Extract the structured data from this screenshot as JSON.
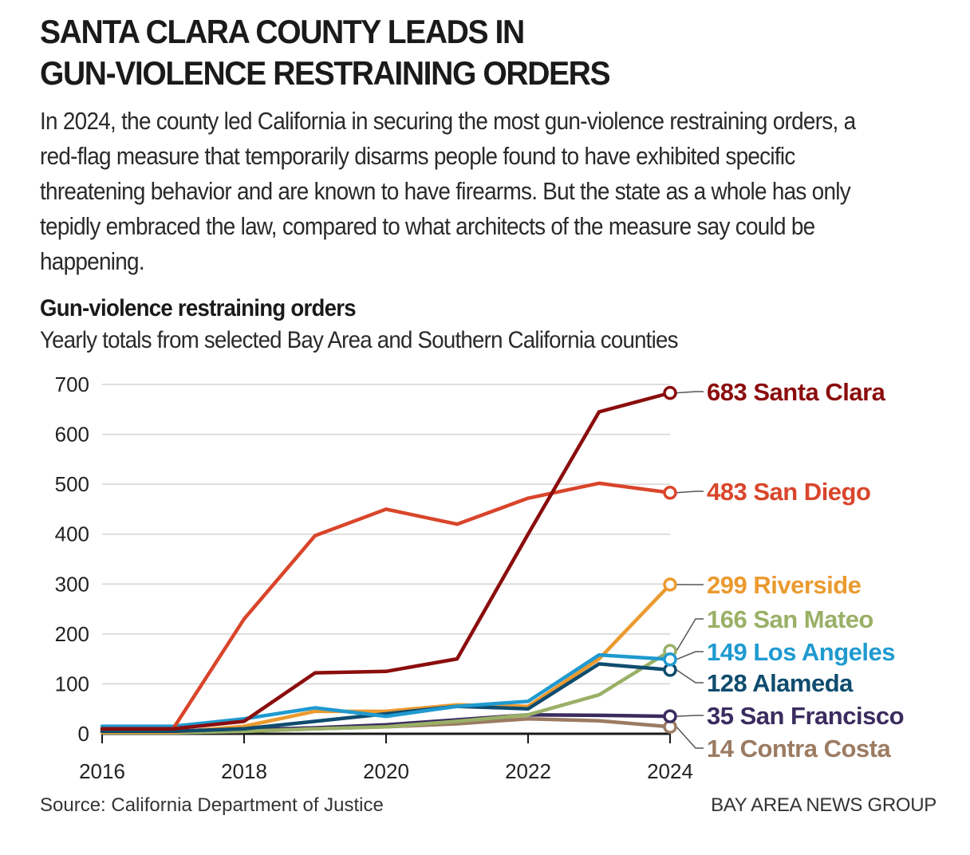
{
  "headline": {
    "line1": "SANTA CLARA COUNTY LEADS IN",
    "line2": "GUN-VIOLENCE RESTRAINING ORDERS"
  },
  "dek": "In 2024, the county led California in securing the most gun-violence restraining orders, a red-flag measure that temporarily disarms people found to have exhibited specific threatening behavior and are known to have firearms. But the state as a whole has only tepidly embraced the law, compared to what architects of the measure say could be happening.",
  "source": "Source: California Department of Justice",
  "credit": "BAY AREA NEWS GROUP",
  "chart_data": {
    "type": "line",
    "title": "Gun-violence restraining orders",
    "subtitle": "Yearly totals from selected Bay Area and Southern California counties",
    "xlabel": "",
    "ylabel": "",
    "x": [
      2016,
      2017,
      2018,
      2019,
      2020,
      2021,
      2022,
      2023,
      2024
    ],
    "x_ticks": [
      "2016",
      "2018",
      "2020",
      "2022",
      "2024"
    ],
    "y_ticks": [
      "0",
      "100",
      "200",
      "300",
      "400",
      "500",
      "600",
      "700"
    ],
    "ylim": [
      0,
      700
    ],
    "xlim": [
      2016,
      2024
    ],
    "grid": true,
    "legend": "direct labels at right end of lines",
    "series": [
      {
        "name": "Contra Costa",
        "label": "14 Contra Costa",
        "color": "#9b7b62",
        "values": [
          3,
          3,
          5,
          10,
          14,
          20,
          30,
          26,
          14
        ]
      },
      {
        "name": "San Francisco",
        "label": "35 San Francisco",
        "color": "#3a2c5f",
        "values": [
          5,
          5,
          8,
          12,
          18,
          28,
          38,
          37,
          35
        ]
      },
      {
        "name": "San Mateo",
        "label": "166 San Mateo",
        "color": "#9ab067",
        "values": [
          2,
          2,
          5,
          10,
          14,
          25,
          38,
          78,
          166
        ]
      },
      {
        "name": "Riverside",
        "label": "299 Riverside",
        "color": "#eb9a2f",
        "values": [
          3,
          3,
          15,
          45,
          45,
          58,
          55,
          150,
          299
        ]
      },
      {
        "name": "Alameda",
        "label": "128 Alameda",
        "color": "#0f4c6e",
        "values": [
          5,
          5,
          10,
          25,
          40,
          55,
          50,
          140,
          128
        ]
      },
      {
        "name": "Los Angeles",
        "label": "149 Los Angeles",
        "color": "#1f9ad0",
        "values": [
          15,
          15,
          30,
          52,
          35,
          55,
          65,
          158,
          149
        ]
      },
      {
        "name": "San Diego",
        "label": "483 San Diego",
        "color": "#d9452b",
        "values": [
          10,
          10,
          230,
          397,
          450,
          420,
          472,
          502,
          483
        ]
      },
      {
        "name": "Santa Clara",
        "label": "683 Santa Clara",
        "color": "#8b0d0d",
        "values": [
          10,
          10,
          25,
          122,
          125,
          150,
          400,
          645,
          683
        ]
      }
    ]
  }
}
